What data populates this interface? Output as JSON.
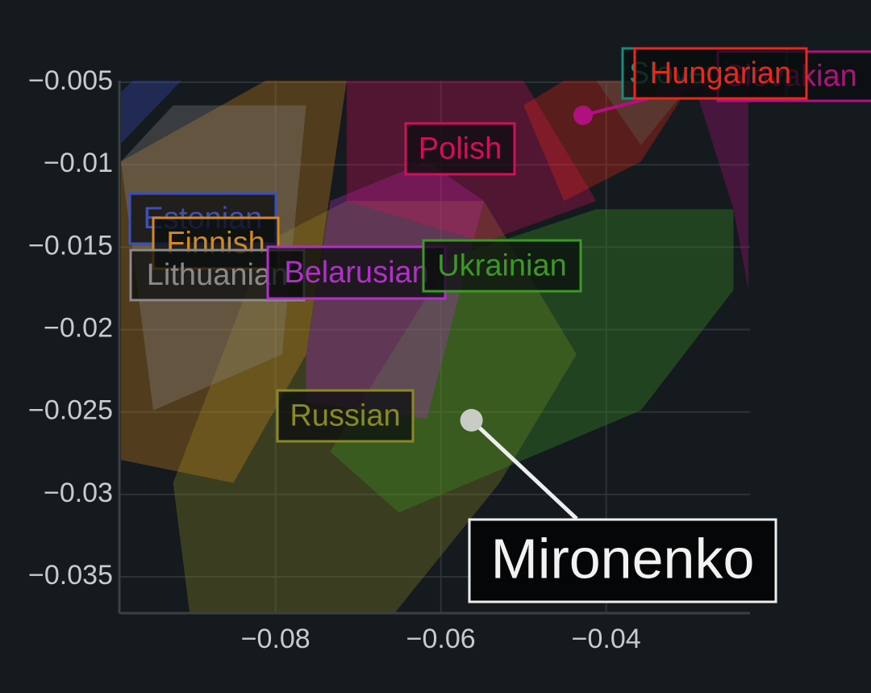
{
  "chart_data": {
    "type": "scatter",
    "xlim": [
      -0.0989,
      -0.0226
    ],
    "ylim": [
      -0.0372,
      -0.0049
    ],
    "xticks": [
      {
        "value": -0.08,
        "label": "−0.08"
      },
      {
        "value": -0.06,
        "label": "−0.06"
      },
      {
        "value": -0.04,
        "label": "−0.04"
      }
    ],
    "yticks": [
      {
        "value": -0.005,
        "label": "−0.005"
      },
      {
        "value": -0.01,
        "label": "−0.01"
      },
      {
        "value": -0.015,
        "label": "−0.015"
      },
      {
        "value": -0.02,
        "label": "−0.02"
      },
      {
        "value": -0.025,
        "label": "−0.025"
      },
      {
        "value": -0.03,
        "label": "−0.03"
      },
      {
        "value": -0.035,
        "label": "−0.035"
      }
    ],
    "grid": true,
    "series": [
      {
        "name": "Russian",
        "color": "#8a8a22",
        "x": [
          -0.0924,
          -0.0904,
          -0.0656,
          -0.0529,
          -0.0436,
          -0.0548,
          -0.0714,
          -0.0812
        ],
        "y": [
          -0.0293,
          -0.0372,
          -0.0372,
          -0.0293,
          -0.0215,
          -0.0122,
          -0.0122,
          -0.0147
        ]
      },
      {
        "name": "Ukrainian",
        "color": "#3a9a22",
        "x": [
          -0.0734,
          -0.0651,
          -0.0358,
          -0.0246,
          -0.0246,
          -0.0412,
          -0.0587
        ],
        "y": [
          -0.0274,
          -0.0311,
          -0.0249,
          -0.0176,
          -0.0127,
          -0.0127,
          -0.0156
        ]
      },
      {
        "name": "Finnish",
        "color": "#d08a1e",
        "x": [
          -0.0987,
          -0.0851,
          -0.0763,
          -0.0714,
          -0.0812,
          -0.0987
        ],
        "y": [
          -0.0279,
          -0.0293,
          -0.0215,
          -0.0049,
          -0.0049,
          -0.0098
        ]
      },
      {
        "name": "Lithuanian",
        "color": "#8a8a8a",
        "x": [
          -0.0987,
          -0.0948,
          -0.0792,
          -0.0763,
          -0.0924
        ],
        "y": [
          -0.0098,
          -0.0249,
          -0.0215,
          -0.0064,
          -0.0064
        ]
      },
      {
        "name": "Estonian",
        "color": "#3a4fc0",
        "x": [
          -0.0987,
          -0.0987,
          -0.0973,
          -0.0914
        ],
        "y": [
          -0.0087,
          -0.0056,
          -0.0049,
          -0.0049
        ]
      },
      {
        "name": "Belarusian",
        "color": "#b030c8",
        "x": [
          -0.0763,
          -0.0734,
          -0.0617,
          -0.0548,
          -0.0617,
          -0.0763
        ],
        "y": [
          -0.0215,
          -0.0122,
          -0.0098,
          -0.0122,
          -0.0254,
          -0.0244
        ]
      },
      {
        "name": "Polish",
        "color": "#d0105a",
        "x": [
          -0.0714,
          -0.05,
          -0.0412,
          -0.0548,
          -0.0714
        ],
        "y": [
          -0.0049,
          -0.0049,
          -0.0122,
          -0.0147,
          -0.0122
        ]
      },
      {
        "name": "Slovenian",
        "color": "#1a8a7a",
        "x": [
          -0.0412,
          -0.0358,
          -0.0295
        ],
        "y": [
          -0.0049,
          -0.0088,
          -0.0049
        ]
      },
      {
        "name": "Slovakian",
        "color": "#b01080",
        "x": [
          -0.0295,
          -0.0228,
          -0.0228,
          -0.0246
        ],
        "y": [
          -0.0049,
          -0.0049,
          -0.0176,
          -0.0127
        ],
        "point": {
          "x": -0.0428,
          "y": -0.007
        }
      },
      {
        "name": "Hungarian",
        "color": "#e8281a",
        "x": [
          -0.05,
          -0.0451,
          -0.0358,
          -0.0295,
          -0.0451
        ],
        "y": [
          -0.0064,
          -0.0122,
          -0.0098,
          -0.0049,
          -0.0049
        ]
      }
    ],
    "points": [
      {
        "name": "Mironenko",
        "x": -0.0563,
        "y": -0.0255
      }
    ]
  }
}
